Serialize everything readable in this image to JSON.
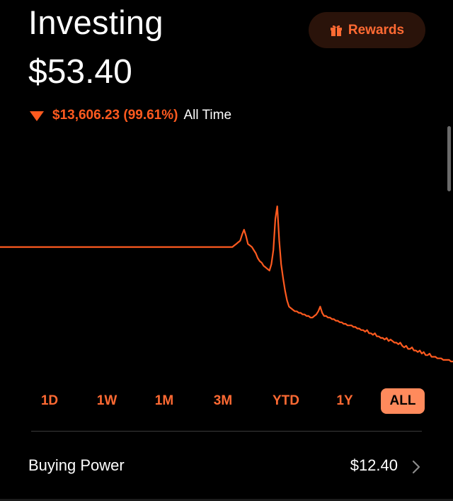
{
  "header": {
    "title": "Investing",
    "rewards_label": "Rewards"
  },
  "portfolio": {
    "balance": "$53.40",
    "change_amount": "$13,606.23 (99.61%)",
    "change_period": "All Time",
    "direction": "down"
  },
  "colors": {
    "accent": "#ff5a1f",
    "accent_soft": "#ff8a5c",
    "background": "#000000",
    "rewards_bg": "#2a130a"
  },
  "icons": {
    "rewards": "gift-icon",
    "change": "triangle-down-icon",
    "buying_power": "chevron-right-icon"
  },
  "chart_data": {
    "type": "line",
    "title": "",
    "xlabel": "",
    "ylabel": "",
    "grid": false,
    "series": [
      {
        "values": [
          100,
          100,
          100,
          100,
          100,
          100,
          100,
          100,
          100,
          100,
          100,
          100,
          100,
          100,
          100,
          100,
          100,
          100,
          100,
          100,
          100,
          100,
          100,
          100,
          100,
          100,
          100,
          100,
          100,
          100,
          100,
          100,
          100,
          100,
          100,
          100,
          100,
          100,
          100,
          100,
          100,
          100,
          100,
          100,
          100,
          100,
          100,
          100,
          100,
          100,
          100,
          100,
          100,
          100,
          100,
          100,
          100,
          100,
          100,
          100,
          100,
          100,
          100,
          100,
          100,
          100,
          100,
          100,
          100,
          100,
          100,
          100,
          100,
          100,
          100,
          100,
          100,
          100,
          100,
          100,
          100,
          100,
          100,
          100,
          100,
          100,
          100,
          100,
          100,
          100,
          100,
          100,
          100,
          100,
          100,
          100,
          100,
          100,
          100,
          100,
          100,
          100,
          100,
          100,
          100,
          100,
          100,
          100,
          100,
          100,
          100,
          100,
          100,
          100,
          100,
          100,
          100,
          100,
          100,
          100,
          101,
          102,
          103,
          104,
          108,
          111,
          107,
          102,
          101,
          100,
          98,
          96,
          93,
          91,
          90,
          88,
          87,
          86,
          85,
          89,
          98,
          118,
          126,
          104,
          89,
          80,
          72,
          66,
          62,
          61,
          60,
          59,
          59,
          58,
          58,
          57,
          57,
          56,
          56,
          55,
          55,
          56,
          57,
          59,
          62,
          58,
          56,
          56,
          55,
          55,
          54,
          54,
          53,
          53,
          52,
          52,
          51,
          51,
          50,
          50,
          50,
          49,
          49,
          48,
          48,
          47,
          47,
          46,
          47,
          45,
          45,
          44,
          45,
          43,
          43,
          42,
          42,
          41,
          42,
          40,
          41,
          40,
          39,
          39,
          38,
          39,
          37,
          36,
          37,
          35,
          35,
          36,
          34,
          34,
          33,
          34,
          32,
          33,
          31,
          31,
          32,
          30,
          30,
          30,
          29,
          29,
          29,
          28,
          28,
          28,
          28,
          27,
          27
        ]
      }
    ]
  },
  "ranges": {
    "selected": "ALL",
    "items": [
      "1D",
      "1W",
      "1M",
      "3M",
      "YTD",
      "1Y",
      "ALL"
    ]
  },
  "buying_power": {
    "label": "Buying Power",
    "value": "$12.40"
  }
}
